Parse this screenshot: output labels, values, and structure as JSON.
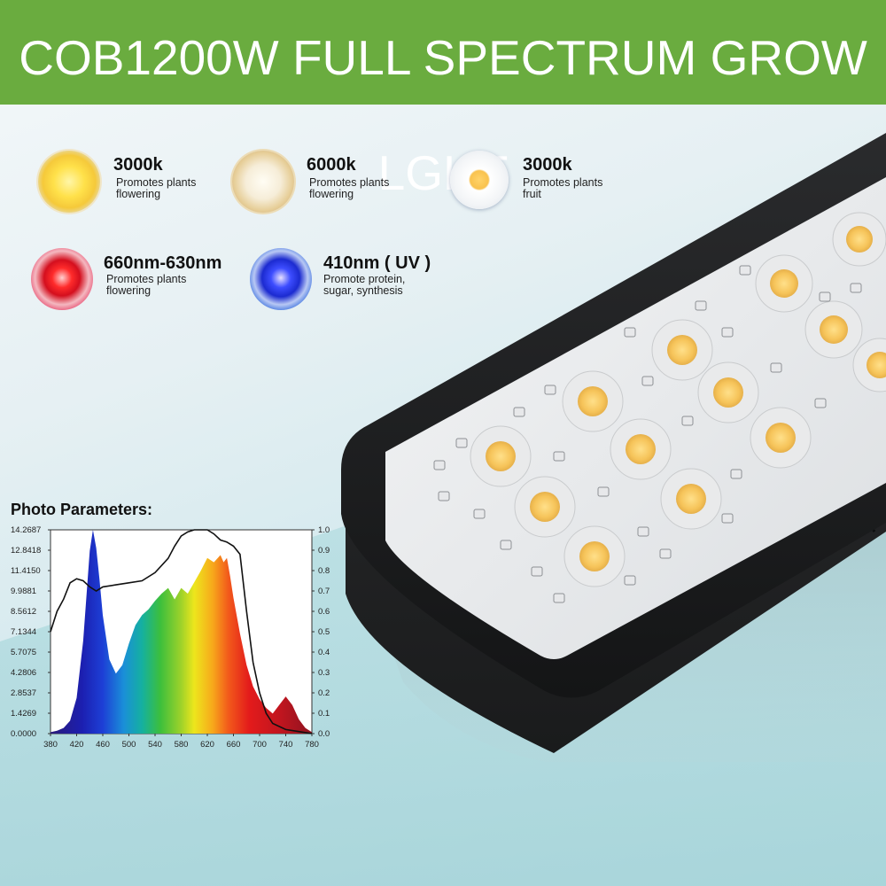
{
  "banner": {
    "title": "COB1200W FULL SPECTRUM GROW LGHT",
    "color": "#6aac3f"
  },
  "features": [
    {
      "title": "3000k",
      "line1": "Promotes plants",
      "line2": "flowering",
      "icon": "warm-cob-led-icon"
    },
    {
      "title": "6000k",
      "line1": "Promotes plants",
      "line2": "flowering",
      "icon": "neutral-cob-led-icon"
    },
    {
      "title": "3000k",
      "line1": "Promotes plants",
      "line2": "fruit",
      "icon": "white-cob-led-icon"
    },
    {
      "title": "660nm-630nm",
      "line1": "Promotes plants",
      "line2": "flowering",
      "icon": "red-led-chip-icon"
    },
    {
      "title": "410nm ( UV )",
      "line1": "Promote protein,",
      "line2": "sugar, synthesis",
      "icon": "uv-led-chip-icon"
    }
  ],
  "photo_title": "Photo Parameters:",
  "chart_data": {
    "type": "area",
    "title": "",
    "xlabel": "",
    "ylabel": "",
    "x_ticks": [
      380,
      420,
      460,
      500,
      540,
      580,
      620,
      660,
      700,
      740,
      780
    ],
    "y_left_ticks": [
      "0.0000",
      "1.4269",
      "2.8537",
      "4.2806",
      "5.7075",
      "7.1344",
      "8.5612",
      "9.9881",
      "11.4150",
      "12.8418",
      "14.2687"
    ],
    "y_right_ticks": [
      "0.0",
      "0.1",
      "0.2",
      "0.3",
      "0.4",
      "0.5",
      "0.6",
      "0.7",
      "0.8",
      "0.9",
      "1.0"
    ],
    "xlim": [
      380,
      780
    ],
    "ylim": [
      0,
      14.2687
    ],
    "y2lim": [
      0,
      1.0
    ],
    "series": [
      {
        "axis": "left",
        "style": "spectral-fill",
        "x": [
          380,
          390,
          400,
          410,
          420,
          430,
          440,
          445,
          450,
          455,
          460,
          470,
          480,
          490,
          500,
          510,
          520,
          530,
          540,
          550,
          560,
          570,
          580,
          590,
          600,
          610,
          620,
          630,
          640,
          645,
          650,
          655,
          660,
          670,
          680,
          690,
          700,
          710,
          720,
          730,
          740,
          750,
          760,
          770,
          780
        ],
        "values": [
          0.1,
          0.2,
          0.4,
          0.9,
          2.5,
          6.5,
          12.8,
          14.27,
          13.0,
          10.8,
          8.3,
          5.2,
          4.2,
          4.8,
          6.3,
          7.6,
          8.3,
          8.7,
          9.3,
          9.8,
          10.2,
          9.4,
          10.2,
          9.8,
          10.6,
          11.4,
          12.3,
          12.0,
          12.5,
          12.0,
          12.3,
          11.0,
          9.5,
          7.0,
          4.8,
          3.3,
          2.4,
          1.8,
          1.4,
          2.0,
          2.6,
          2.0,
          1.0,
          0.4,
          0.1
        ]
      },
      {
        "axis": "right",
        "style": "line",
        "x": [
          380,
          390,
          400,
          410,
          420,
          430,
          440,
          450,
          460,
          480,
          500,
          520,
          540,
          560,
          570,
          580,
          590,
          600,
          620,
          630,
          640,
          650,
          660,
          670,
          680,
          690,
          700,
          710,
          720,
          740,
          760,
          780
        ],
        "values": [
          0.5,
          0.6,
          0.66,
          0.74,
          0.76,
          0.75,
          0.72,
          0.7,
          0.72,
          0.73,
          0.74,
          0.75,
          0.79,
          0.86,
          0.92,
          0.97,
          0.99,
          1.0,
          1.0,
          0.98,
          0.95,
          0.94,
          0.92,
          0.88,
          0.6,
          0.35,
          0.2,
          0.1,
          0.05,
          0.02,
          0.01,
          0.0
        ]
      }
    ]
  }
}
